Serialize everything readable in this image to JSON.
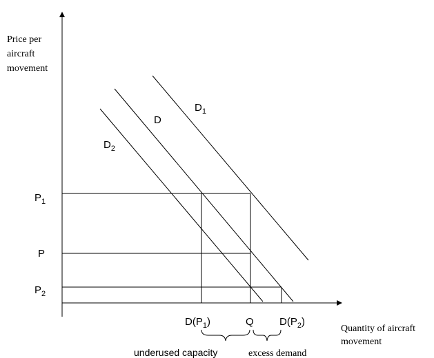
{
  "y_axis_label": [
    "Price per",
    "aircraft",
    "movement"
  ],
  "x_axis_label": [
    "Quantity of aircraft",
    "movement"
  ],
  "curves": [
    {
      "id": "D1",
      "base": "D",
      "sub": "1"
    },
    {
      "id": "D",
      "base": "D",
      "sub": ""
    },
    {
      "id": "D2",
      "base": "D",
      "sub": "2"
    }
  ],
  "price_levels": [
    {
      "id": "P1",
      "base": "P",
      "sub": "1"
    },
    {
      "id": "P",
      "base": "P",
      "sub": ""
    },
    {
      "id": "P2",
      "base": "P",
      "sub": "2"
    }
  ],
  "quantity_labels": [
    {
      "id": "DP1",
      "prefix": "D(P",
      "sub": "1",
      "suffix": ")"
    },
    {
      "id": "Q",
      "prefix": "Q",
      "sub": "",
      "suffix": ""
    },
    {
      "id": "DP2",
      "prefix": "D(P",
      "sub": "2",
      "suffix": ")"
    }
  ],
  "brace_labels": {
    "underused": "underused capacity",
    "excess": "excess demand"
  }
}
